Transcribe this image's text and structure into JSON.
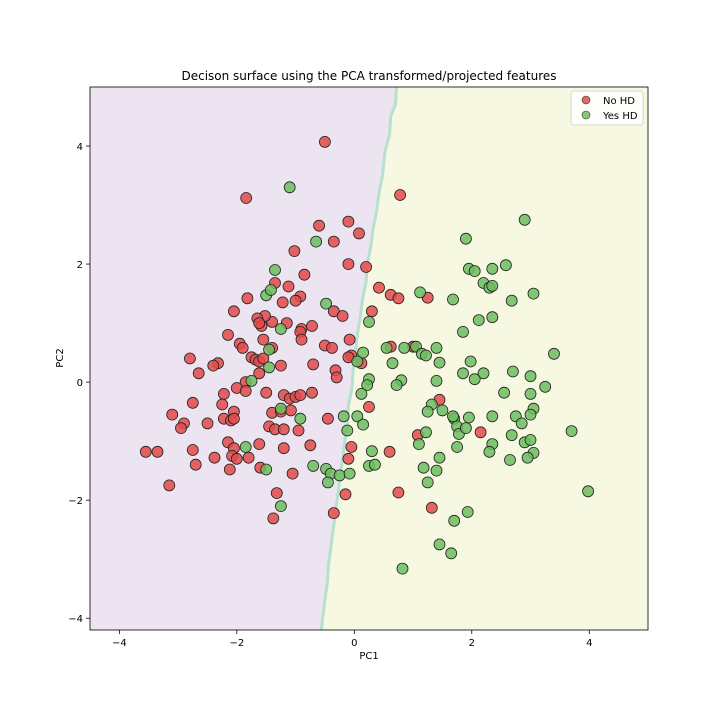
{
  "chart_data": {
    "type": "scatter",
    "title": "Decison surface using the PCA transformed/projected features",
    "xlabel": "PC1",
    "ylabel": "PC2",
    "xlim": [
      -4.5,
      5.0
    ],
    "ylim": [
      -4.2,
      5.0
    ],
    "xticks": [
      -4,
      -2,
      0,
      2,
      4
    ],
    "yticks": [
      -4,
      -2,
      0,
      2,
      4
    ],
    "xtick_labels": [
      "−4",
      "−2",
      "0",
      "2",
      "4"
    ],
    "ytick_labels": [
      "−4",
      "−2",
      "0",
      "2",
      "4"
    ],
    "grid": false,
    "legend_position": "top-right",
    "regions": {
      "left_color": "#ece4f0",
      "right_color": "#f7f8e2",
      "boundary_color": "#b8e0cf",
      "boundary": [
        [
          0.72,
          5.0
        ],
        [
          0.7,
          4.7
        ],
        [
          0.62,
          4.5
        ],
        [
          0.6,
          4.2
        ],
        [
          0.52,
          3.9
        ],
        [
          0.48,
          3.5
        ],
        [
          0.42,
          3.2
        ],
        [
          0.38,
          2.9
        ],
        [
          0.32,
          2.6
        ],
        [
          0.28,
          2.3
        ],
        [
          0.22,
          2.0
        ],
        [
          0.2,
          1.7
        ],
        [
          0.14,
          1.4
        ],
        [
          0.1,
          1.1
        ],
        [
          0.05,
          0.8
        ],
        [
          0.02,
          0.5
        ],
        [
          -0.02,
          0.2
        ],
        [
          -0.04,
          -0.1
        ],
        [
          -0.1,
          -0.4
        ],
        [
          -0.12,
          -0.7
        ],
        [
          -0.16,
          -1.0
        ],
        [
          -0.2,
          -1.3
        ],
        [
          -0.24,
          -1.6
        ],
        [
          -0.28,
          -1.9
        ],
        [
          -0.32,
          -2.2
        ],
        [
          -0.36,
          -2.5
        ],
        [
          -0.4,
          -2.8
        ],
        [
          -0.44,
          -3.1
        ],
        [
          -0.46,
          -3.4
        ],
        [
          -0.5,
          -3.7
        ],
        [
          -0.54,
          -4.0
        ],
        [
          -0.56,
          -4.2
        ]
      ]
    },
    "series": [
      {
        "name": "No HD",
        "color": "#e34a4a",
        "points": [
          [
            -0.5,
            4.07
          ],
          [
            -1.84,
            3.12
          ],
          [
            0.78,
            3.17
          ],
          [
            -0.1,
            2.72
          ],
          [
            -0.6,
            2.65
          ],
          [
            -0.35,
            2.38
          ],
          [
            0.08,
            2.52
          ],
          [
            -1.02,
            2.22
          ],
          [
            -0.1,
            2.0
          ],
          [
            0.2,
            1.95
          ],
          [
            -0.85,
            1.82
          ],
          [
            -1.35,
            1.68
          ],
          [
            -1.12,
            1.62
          ],
          [
            -0.92,
            1.45
          ],
          [
            -1.82,
            1.42
          ],
          [
            -2.05,
            1.2
          ],
          [
            -1.0,
            1.38
          ],
          [
            -1.22,
            1.35
          ],
          [
            0.42,
            1.6
          ],
          [
            0.62,
            1.48
          ],
          [
            0.75,
            1.42
          ],
          [
            1.25,
            1.43
          ],
          [
            -0.35,
            1.2
          ],
          [
            -0.2,
            1.12
          ],
          [
            0.3,
            1.2
          ],
          [
            -1.4,
            1.02
          ],
          [
            -1.52,
            1.12
          ],
          [
            -1.65,
            1.08
          ],
          [
            -1.58,
            0.95
          ],
          [
            -1.62,
            1.0
          ],
          [
            -1.15,
            1.0
          ],
          [
            -2.15,
            0.8
          ],
          [
            -0.9,
            0.9
          ],
          [
            -0.72,
            0.95
          ],
          [
            -0.92,
            0.85
          ],
          [
            -1.95,
            0.65
          ],
          [
            -1.9,
            0.58
          ],
          [
            -1.55,
            0.72
          ],
          [
            -1.4,
            0.58
          ],
          [
            -0.9,
            0.72
          ],
          [
            -0.5,
            0.62
          ],
          [
            -0.38,
            0.58
          ],
          [
            -0.08,
            0.72
          ],
          [
            0.62,
            0.6
          ],
          [
            1.0,
            0.6
          ],
          [
            -2.8,
            0.4
          ],
          [
            -1.75,
            0.42
          ],
          [
            -1.68,
            0.38
          ],
          [
            -1.62,
            0.35
          ],
          [
            -1.55,
            0.4
          ],
          [
            -2.32,
            0.32
          ],
          [
            -2.4,
            0.28
          ],
          [
            -0.7,
            0.3
          ],
          [
            -0.05,
            0.45
          ],
          [
            -0.1,
            0.42
          ],
          [
            0.12,
            0.32
          ],
          [
            -2.65,
            0.15
          ],
          [
            -1.62,
            0.15
          ],
          [
            -1.25,
            0.28
          ],
          [
            -1.85,
            0.0
          ],
          [
            -1.5,
            -0.18
          ],
          [
            -2.0,
            -0.1
          ],
          [
            -1.85,
            -0.15
          ],
          [
            -2.22,
            -0.2
          ],
          [
            -1.2,
            -0.22
          ],
          [
            -1.1,
            -0.28
          ],
          [
            -1.0,
            -0.25
          ],
          [
            -0.92,
            -0.22
          ],
          [
            -0.72,
            -0.18
          ],
          [
            -0.32,
            0.2
          ],
          [
            -0.3,
            0.08
          ],
          [
            0.25,
            -0.42
          ],
          [
            -2.75,
            -0.35
          ],
          [
            -2.25,
            -0.38
          ],
          [
            -2.05,
            -0.5
          ],
          [
            -1.4,
            -0.52
          ],
          [
            -1.25,
            -0.5
          ],
          [
            -1.08,
            -0.48
          ],
          [
            -0.45,
            -0.62
          ],
          [
            -3.1,
            -0.55
          ],
          [
            -2.9,
            -0.7
          ],
          [
            -2.5,
            -0.7
          ],
          [
            -2.22,
            -0.62
          ],
          [
            -2.1,
            -0.65
          ],
          [
            -2.05,
            -0.62
          ],
          [
            -1.45,
            -0.75
          ],
          [
            -1.35,
            -0.8
          ],
          [
            -1.2,
            -0.8
          ],
          [
            -0.95,
            -0.82
          ],
          [
            -2.95,
            -0.78
          ],
          [
            -0.75,
            -1.07
          ],
          [
            1.45,
            -0.3
          ],
          [
            1.08,
            -0.9
          ],
          [
            2.15,
            -0.85
          ],
          [
            -3.55,
            -1.18
          ],
          [
            -3.35,
            -1.18
          ],
          [
            -2.75,
            -1.15
          ],
          [
            -2.15,
            -1.02
          ],
          [
            -2.05,
            -1.12
          ],
          [
            -1.62,
            -1.05
          ],
          [
            -1.2,
            -1.12
          ],
          [
            -2.08,
            -1.25
          ],
          [
            -1.8,
            -1.28
          ],
          [
            -2.0,
            -1.3
          ],
          [
            -2.38,
            -1.28
          ],
          [
            -2.7,
            -1.4
          ],
          [
            -2.12,
            -1.48
          ],
          [
            -1.6,
            -1.45
          ],
          [
            -0.1,
            -1.3
          ],
          [
            -0.05,
            -1.1
          ],
          [
            0.6,
            -1.18
          ],
          [
            -3.15,
            -1.75
          ],
          [
            -1.05,
            -1.55
          ],
          [
            -1.32,
            -1.88
          ],
          [
            -0.15,
            -1.9
          ],
          [
            0.75,
            -1.87
          ],
          [
            1.32,
            -2.13
          ],
          [
            -1.38,
            -2.31
          ],
          [
            -0.35,
            -2.22
          ]
        ]
      },
      {
        "name": "Yes HD",
        "color": "#6cbd5e",
        "points": [
          [
            -1.1,
            3.3
          ],
          [
            2.9,
            2.75
          ],
          [
            -0.65,
            2.38
          ],
          [
            1.9,
            2.43
          ],
          [
            1.95,
            1.92
          ],
          [
            2.05,
            1.88
          ],
          [
            2.35,
            1.92
          ],
          [
            2.58,
            1.98
          ],
          [
            2.2,
            1.68
          ],
          [
            2.3,
            1.6
          ],
          [
            2.35,
            1.63
          ],
          [
            2.68,
            1.38
          ],
          [
            3.05,
            1.5
          ],
          [
            1.68,
            1.4
          ],
          [
            1.12,
            1.52
          ],
          [
            -1.35,
            1.9
          ],
          [
            -1.5,
            1.47
          ],
          [
            -0.48,
            1.33
          ],
          [
            0.25,
            1.02
          ],
          [
            2.35,
            1.1
          ],
          [
            2.12,
            1.05
          ],
          [
            1.85,
            0.85
          ],
          [
            1.05,
            0.6
          ],
          [
            1.4,
            0.58
          ],
          [
            0.55,
            0.58
          ],
          [
            0.85,
            0.58
          ],
          [
            1.15,
            0.48
          ],
          [
            1.22,
            0.45
          ],
          [
            1.45,
            0.33
          ],
          [
            1.98,
            0.35
          ],
          [
            2.2,
            0.15
          ],
          [
            2.7,
            0.18
          ],
          [
            1.85,
            0.15
          ],
          [
            2.05,
            0.05
          ],
          [
            3.4,
            0.48
          ],
          [
            3.0,
            0.1
          ],
          [
            3.25,
            -0.08
          ],
          [
            -1.42,
            1.56
          ],
          [
            -1.45,
            0.55
          ],
          [
            -1.75,
            0.02
          ],
          [
            -1.45,
            0.25
          ],
          [
            -1.25,
            0.9
          ],
          [
            0.65,
            0.32
          ],
          [
            0.8,
            0.03
          ],
          [
            0.72,
            -0.05
          ],
          [
            0.25,
            0.05
          ],
          [
            0.22,
            -0.05
          ],
          [
            0.15,
            0.5
          ],
          [
            0.05,
            0.35
          ],
          [
            0.12,
            -0.2
          ],
          [
            1.32,
            -0.38
          ],
          [
            1.4,
            0.02
          ],
          [
            1.5,
            -0.48
          ],
          [
            1.25,
            -0.5
          ],
          [
            1.7,
            -0.62
          ],
          [
            1.75,
            -0.75
          ],
          [
            1.95,
            -0.6
          ],
          [
            2.55,
            -0.18
          ],
          [
            3.0,
            -0.2
          ],
          [
            3.05,
            -0.45
          ],
          [
            3.0,
            -0.55
          ],
          [
            2.75,
            -0.58
          ],
          [
            2.85,
            -0.7
          ],
          [
            2.35,
            -0.58
          ],
          [
            1.68,
            -0.58
          ],
          [
            1.78,
            -0.88
          ],
          [
            1.9,
            -0.78
          ],
          [
            1.22,
            -0.85
          ],
          [
            -0.92,
            -0.62
          ],
          [
            -1.25,
            -0.45
          ],
          [
            0.05,
            -0.58
          ],
          [
            -0.18,
            -0.58
          ],
          [
            -0.12,
            -0.82
          ],
          [
            0.15,
            -0.72
          ],
          [
            3.7,
            -0.83
          ],
          [
            2.68,
            -0.9
          ],
          [
            2.9,
            -1.02
          ],
          [
            3.0,
            -0.98
          ],
          [
            3.05,
            -1.2
          ],
          [
            2.35,
            -1.05
          ],
          [
            2.3,
            -1.18
          ],
          [
            1.75,
            -1.1
          ],
          [
            1.45,
            -1.28
          ],
          [
            1.1,
            -1.05
          ],
          [
            2.65,
            -1.32
          ],
          [
            2.95,
            -1.28
          ],
          [
            -1.85,
            -1.1
          ],
          [
            -1.5,
            -1.48
          ],
          [
            -0.7,
            -1.42
          ],
          [
            -0.48,
            -1.47
          ],
          [
            -0.4,
            -1.55
          ],
          [
            -0.45,
            -1.7
          ],
          [
            -0.25,
            -1.58
          ],
          [
            0.25,
            -1.42
          ],
          [
            0.35,
            -1.4
          ],
          [
            0.3,
            -1.17
          ],
          [
            1.18,
            -1.45
          ],
          [
            1.25,
            -1.7
          ],
          [
            1.4,
            -1.5
          ],
          [
            3.98,
            -1.85
          ],
          [
            -1.25,
            -2.1
          ],
          [
            1.7,
            -2.35
          ],
          [
            1.93,
            -2.2
          ],
          [
            1.45,
            -2.75
          ],
          [
            1.65,
            -2.9
          ],
          [
            0.82,
            -3.16
          ],
          [
            -0.08,
            -1.55
          ]
        ]
      }
    ]
  }
}
